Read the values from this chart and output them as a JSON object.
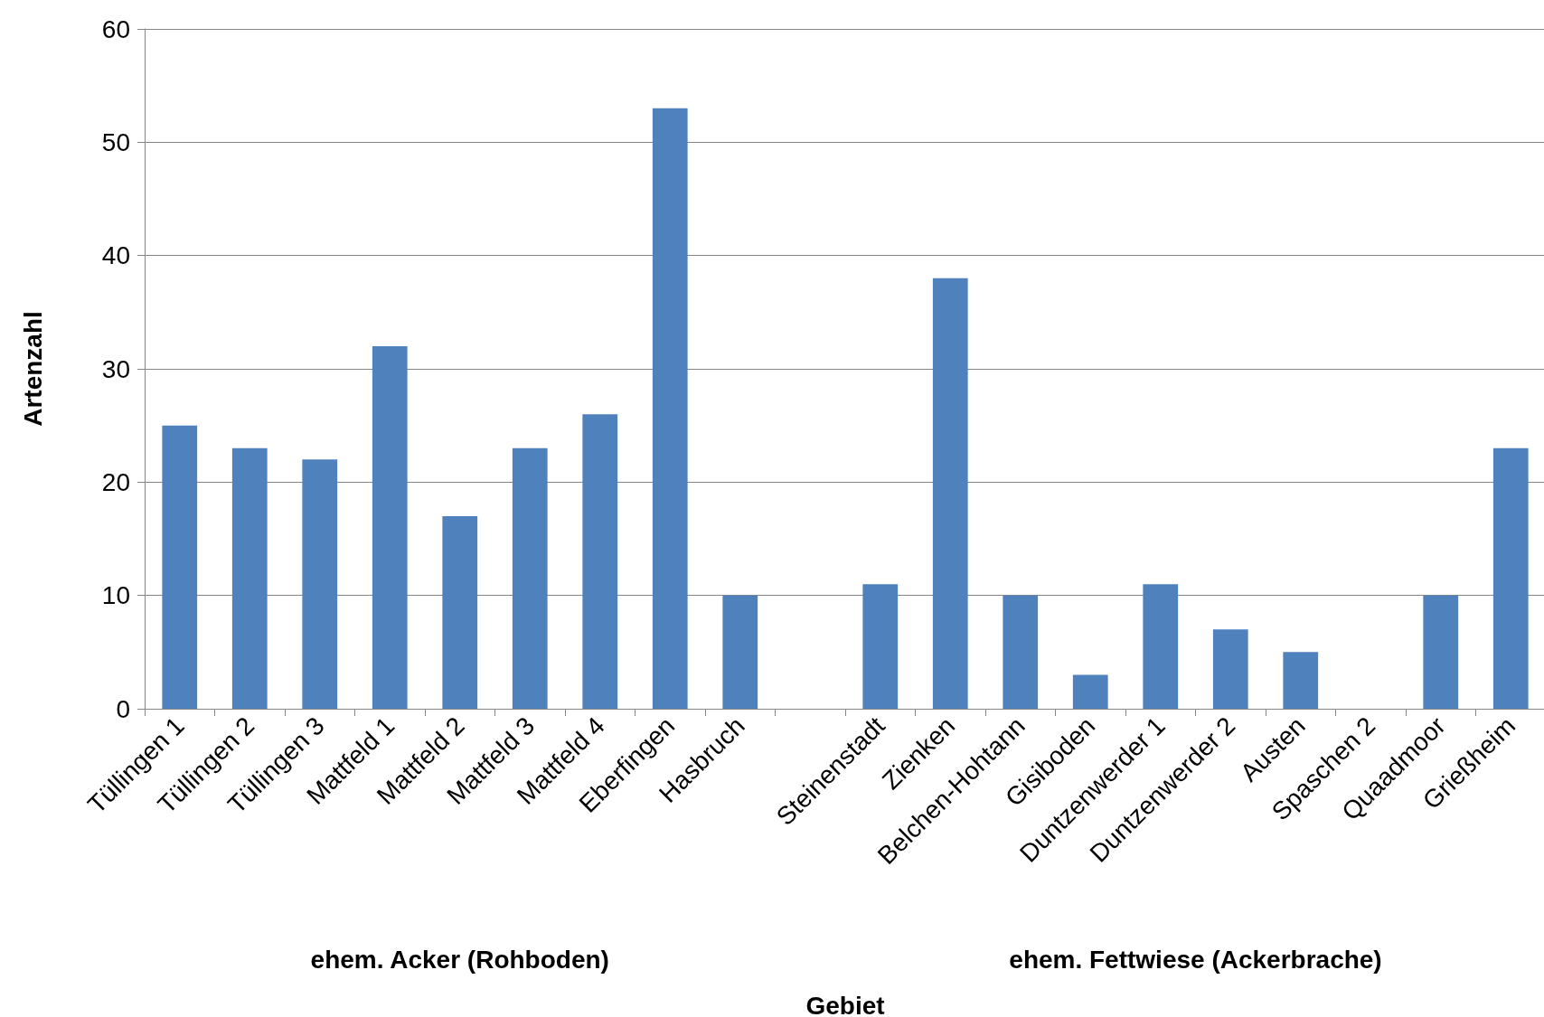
{
  "chart_data": {
    "type": "bar",
    "xlabel": "Gebiet",
    "ylabel": "Artenzahl",
    "categories": [
      "Tüllingen 1",
      "Tüllingen 2",
      "Tüllingen 3",
      "Mattfeld 1",
      "Mattfeld 2",
      "Mattfeld 3",
      "Mattfeld 4",
      "Eberfingen",
      "Hasbruch",
      null,
      "Steinenstadt",
      "Zienken",
      "Belchen-Hohtann",
      "Gisiboden",
      "Duntzenwerder 1",
      "Duntzenwerder 2",
      "Austen",
      "Spaschen 2",
      "Quaadmoor",
      "Grießheim"
    ],
    "values": [
      25,
      23,
      22,
      32,
      17,
      23,
      26,
      53,
      10,
      null,
      11,
      38,
      10,
      3,
      11,
      7,
      5,
      0,
      10,
      23
    ],
    "color": "#4f81bd",
    "ylim": [
      0,
      60
    ],
    "yticks": [
      0,
      10,
      20,
      30,
      40,
      50,
      60
    ],
    "grid": "y",
    "annotations": [
      "ehem. Acker (Rohboden)",
      "ehem. Fettwiese (Ackerbrache)"
    ]
  }
}
